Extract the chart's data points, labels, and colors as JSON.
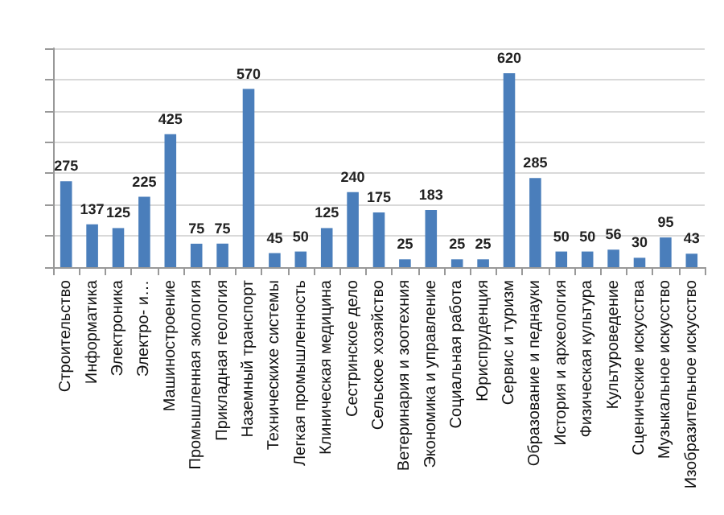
{
  "chart_data": {
    "type": "bar",
    "categories": [
      "Строительство",
      "Информатика",
      "Электроника",
      "Электро- и…",
      "Машиностроение",
      "Промышленная экология",
      "Прикладная геология",
      "Наземный транспорт",
      "Техническихе системы",
      "Легкая промышленность",
      "Клиническая медицина",
      "Сестринское дело",
      "Сельское хозяйство",
      "Ветеринария и зоотехния",
      "Экономика и управление",
      "Социальная работа",
      "Юриспруденция",
      "Сервис и туризм",
      "Образование и педнауки",
      "История и археология",
      "Физическая культура",
      "Культуроведение",
      "Сценические искусства",
      "Музыкальное искусство",
      "Изобразительное искусство"
    ],
    "values": [
      275,
      137,
      125,
      225,
      425,
      75,
      75,
      570,
      45,
      50,
      125,
      240,
      175,
      25,
      183,
      25,
      25,
      620,
      285,
      50,
      50,
      56,
      30,
      95,
      43
    ],
    "color": "#4a7ebb",
    "ylim": [
      0,
      700
    ],
    "yticks": [
      0,
      {
        "value": 100,
        "label": null
      },
      {
        "value": 200,
        "label": null
      },
      {
        "value": 300,
        "label": null
      },
      {
        "value": 400,
        "label": null
      },
      {
        "value": 500,
        "label": null
      },
      {
        "value": 600,
        "label": null
      },
      {
        "value": 700,
        "label": null
      }
    ],
    "grid": "y",
    "tick_labels": "x",
    "data_labels": true
  }
}
